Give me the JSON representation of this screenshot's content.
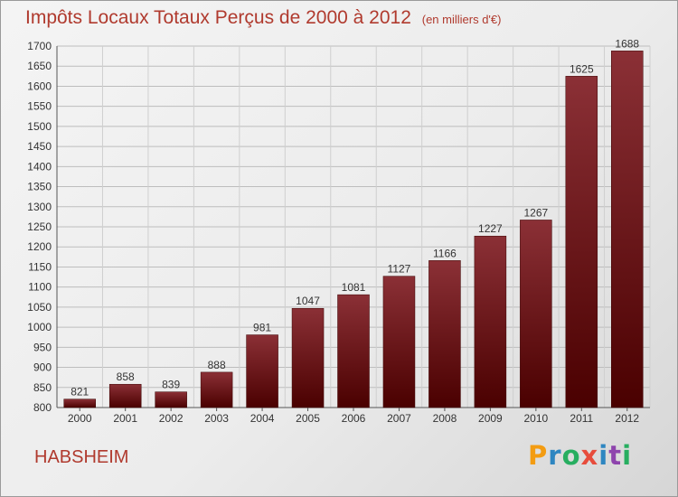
{
  "title": {
    "main": "Impôts Locaux Totaux Perçus de 2000 à 2012",
    "unit": "(en milliers d'€)"
  },
  "commune": "HABSHEIM",
  "brand": {
    "text": "Proxiti",
    "colors": [
      "#f39c12",
      "#2e86c1",
      "#27ae60",
      "#e74c3c",
      "#2e86c1",
      "#8e44ad",
      "#27ae60"
    ]
  },
  "colors": {
    "bar_top": "#8b3036",
    "bar_bottom": "#4a0000",
    "text_red": "#b03a2e"
  },
  "chart_data": {
    "type": "bar",
    "categories": [
      "2000",
      "2001",
      "2002",
      "2003",
      "2004",
      "2005",
      "2006",
      "2007",
      "2008",
      "2009",
      "2010",
      "2011",
      "2012"
    ],
    "values": [
      821,
      858,
      839,
      888,
      981,
      1047,
      1081,
      1127,
      1166,
      1227,
      1267,
      1625,
      1688
    ],
    "ylim": [
      800,
      1700
    ],
    "yticks": [
      800,
      850,
      900,
      950,
      1000,
      1050,
      1100,
      1150,
      1200,
      1250,
      1300,
      1350,
      1400,
      1450,
      1500,
      1550,
      1600,
      1650,
      1700
    ],
    "grid": true
  }
}
